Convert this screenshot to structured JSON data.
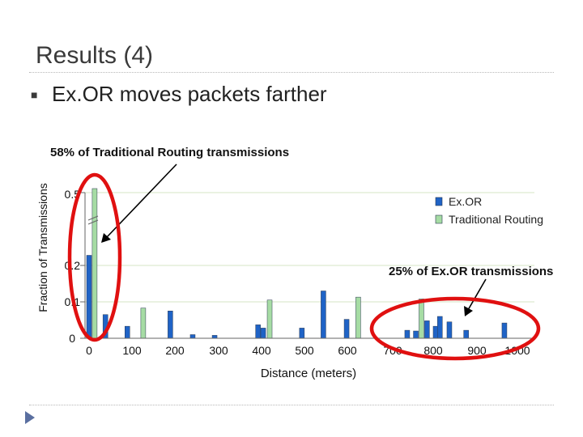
{
  "slide": {
    "title": "Results (4)",
    "bullet": "Ex.OR moves packets farther"
  },
  "chart_data": {
    "type": "bar",
    "x": [
      0,
      50,
      100,
      150,
      200,
      250,
      300,
      350,
      400,
      450,
      500,
      550,
      600,
      650,
      700,
      750,
      800,
      850,
      900,
      950,
      1000
    ],
    "series": [
      {
        "name": "Ex.OR",
        "color": "#1f63c6",
        "values": [
          {
            "x": 0,
            "y": 0.25
          },
          {
            "x": 38,
            "y": 0.065
          },
          {
            "x": 89,
            "y": 0.033
          },
          {
            "x": 189,
            "y": 0.075
          },
          {
            "x": 241,
            "y": 0.01
          },
          {
            "x": 292,
            "y": 0.008
          },
          {
            "x": 393,
            "y": 0.037
          },
          {
            "x": 405,
            "y": 0.028
          },
          {
            "x": 495,
            "y": 0.028
          },
          {
            "x": 545,
            "y": 0.13
          },
          {
            "x": 599,
            "y": 0.052
          },
          {
            "x": 740,
            "y": 0.022
          },
          {
            "x": 760,
            "y": 0.02
          },
          {
            "x": 786,
            "y": 0.048
          },
          {
            "x": 806,
            "y": 0.033
          },
          {
            "x": 816,
            "y": 0.06
          },
          {
            "x": 838,
            "y": 0.045
          },
          {
            "x": 877,
            "y": 0.022
          },
          {
            "x": 966,
            "y": 0.042
          }
        ]
      },
      {
        "name": "Traditional Routing",
        "color": "#a6dca4",
        "values": [
          {
            "x": 13,
            "y": 0.58
          },
          {
            "x": 126,
            "y": 0.083
          },
          {
            "x": 420,
            "y": 0.105
          },
          {
            "x": 626,
            "y": 0.113
          },
          {
            "x": 773,
            "y": 0.108
          }
        ]
      }
    ],
    "y_ticks": [
      "0",
      "0.1",
      "0.2",
      "0.5"
    ],
    "x_ticks": [
      "0",
      "100",
      "200",
      "300",
      "400",
      "500",
      "600",
      "700",
      "800",
      "900",
      "1000"
    ],
    "y_scale": "broken axis (0 to 0.2 linear, break, 0.5 at top)",
    "ylabel": "Fraction of Transmissions",
    "xlabel": "Distance (meters)",
    "legend_position": "top-right",
    "grid": true,
    "grid_color": "#e3eed8",
    "annotations": [
      {
        "text": "58% of Traditional Routing transmissions"
      },
      {
        "text": "25% of Ex.OR transmissions"
      }
    ],
    "highlight_color": "#e01010"
  }
}
